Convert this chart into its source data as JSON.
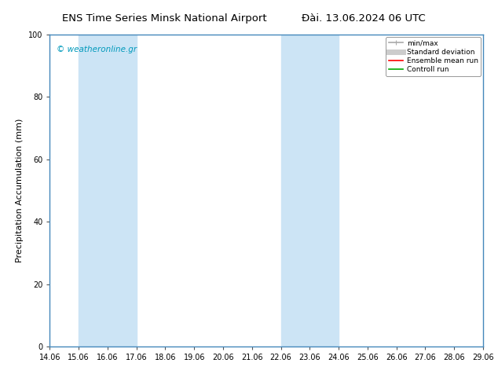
{
  "title_left": "ENS Time Series Minsk National Airport",
  "title_right": "Đài. 13.06.2024 06 UTC",
  "ylabel": "Precipitation Accumulation (mm)",
  "ylim": [
    0,
    100
  ],
  "xlim": [
    14.06,
    29.06
  ],
  "xticks": [
    14.06,
    15.06,
    16.06,
    17.06,
    18.06,
    19.06,
    20.06,
    21.06,
    22.06,
    23.06,
    24.06,
    25.06,
    26.06,
    27.06,
    28.06,
    29.06
  ],
  "xtick_labels": [
    "14.06",
    "15.06",
    "16.06",
    "17.06",
    "18.06",
    "19.06",
    "20.06",
    "21.06",
    "22.06",
    "23.06",
    "24.06",
    "25.06",
    "26.06",
    "27.06",
    "28.06",
    "29.06"
  ],
  "yticks": [
    0,
    20,
    40,
    60,
    80,
    100
  ],
  "shaded_bands": [
    {
      "x_start": 15.06,
      "x_end": 17.06
    },
    {
      "x_start": 22.06,
      "x_end": 24.06
    }
  ],
  "band_color": "#cce4f5",
  "watermark_text": "© weatheronline.gr",
  "watermark_color": "#0099bb",
  "legend_entries": [
    {
      "label": "min/max",
      "color": "#aaaaaa",
      "lw": 1.2,
      "linestyle": "-"
    },
    {
      "label": "Standard deviation",
      "color": "#cccccc",
      "lw": 5,
      "linestyle": "-"
    },
    {
      "label": "Ensemble mean run",
      "color": "#ff0000",
      "lw": 1.2,
      "linestyle": "-"
    },
    {
      "label": "Controll run",
      "color": "#00aa00",
      "lw": 1.2,
      "linestyle": "-"
    }
  ],
  "bg_color": "#ffffff",
  "plot_bg_color": "#ffffff",
  "spine_color": "#4488bb",
  "title_fontsize": 9.5,
  "ylabel_fontsize": 8,
  "tick_fontsize": 7,
  "watermark_fontsize": 7.5,
  "legend_fontsize": 6.5
}
